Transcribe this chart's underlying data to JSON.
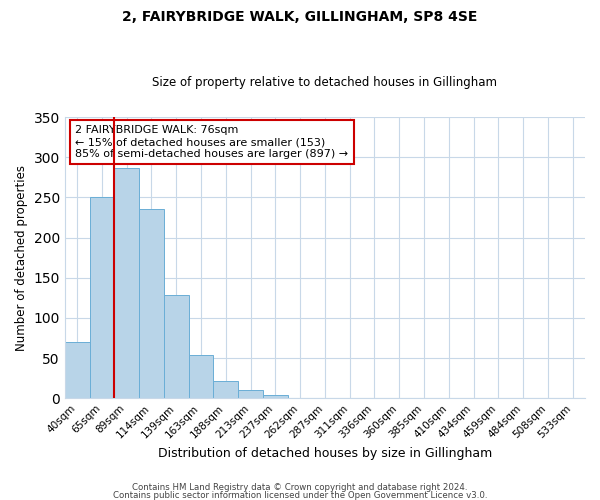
{
  "title": "2, FAIRYBRIDGE WALK, GILLINGHAM, SP8 4SE",
  "subtitle": "Size of property relative to detached houses in Gillingham",
  "xlabel": "Distribution of detached houses by size in Gillingham",
  "ylabel": "Number of detached properties",
  "bar_labels": [
    "40sqm",
    "65sqm",
    "89sqm",
    "114sqm",
    "139sqm",
    "163sqm",
    "188sqm",
    "213sqm",
    "237sqm",
    "262sqm",
    "287sqm",
    "311sqm",
    "336sqm",
    "360sqm",
    "385sqm",
    "410sqm",
    "434sqm",
    "459sqm",
    "484sqm",
    "508sqm",
    "533sqm"
  ],
  "bar_values": [
    70,
    250,
    286,
    235,
    128,
    54,
    22,
    10,
    4,
    1,
    0,
    0,
    0,
    0,
    0,
    0,
    0,
    0,
    0,
    0,
    1
  ],
  "bar_color": "#b8d4e8",
  "bar_edge_color": "#6aaed6",
  "vline_x_index": 1,
  "vline_color": "#cc0000",
  "annotation_title": "2 FAIRYBRIDGE WALK: 76sqm",
  "annotation_line1": "← 15% of detached houses are smaller (153)",
  "annotation_line2": "85% of semi-detached houses are larger (897) →",
  "annotation_box_color": "#ffffff",
  "annotation_box_edge": "#cc0000",
  "ylim": [
    0,
    350
  ],
  "yticks": [
    0,
    50,
    100,
    150,
    200,
    250,
    300,
    350
  ],
  "footer1": "Contains HM Land Registry data © Crown copyright and database right 2024.",
  "footer2": "Contains public sector information licensed under the Open Government Licence v3.0.",
  "bg_color": "#ffffff",
  "grid_color": "#c8d8e8"
}
